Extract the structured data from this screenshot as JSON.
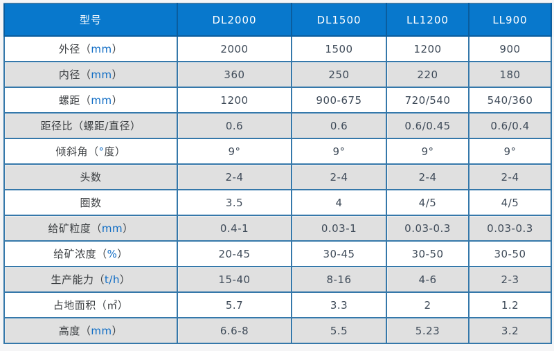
{
  "colors": {
    "header_bg": "#0878cc",
    "header_cell_border": "#0a5d9e",
    "grid_border": "#3578aa",
    "alt_row_bg": "#e0e0e0",
    "value_text": "#3e4a58",
    "label_text": "#3c3f42",
    "unit_text": "#0d6bc4",
    "page_bg": "#f5f5f6"
  },
  "table": {
    "header": {
      "model_label": "型号",
      "columns": [
        "DL2000",
        "DL1500",
        "LL1200",
        "LL900"
      ]
    },
    "rows": [
      {
        "label": {
          "pre": "外径（",
          "unit": "mm",
          "post": "）"
        },
        "values": [
          "2000",
          "1500",
          "1200",
          "900"
        ]
      },
      {
        "label": {
          "pre": "内径（",
          "unit": "mm",
          "post": "）"
        },
        "values": [
          "360",
          "250",
          "220",
          "180"
        ]
      },
      {
        "label": {
          "pre": "螺距（",
          "unit": "mm",
          "post": "）"
        },
        "values": [
          "1200",
          "900-675",
          "720/540",
          "540/360"
        ]
      },
      {
        "label": {
          "pre": "距径比（螺距/直径）",
          "unit": "",
          "post": ""
        },
        "values": [
          "0.6",
          "0.6",
          "0.6/0.45",
          "0.6/0.4"
        ]
      },
      {
        "label": {
          "pre": "倾斜角（",
          "unit": "°",
          "post": "度）"
        },
        "values": [
          "9°",
          "9°",
          "9°",
          "9°"
        ]
      },
      {
        "label": {
          "pre": "头数",
          "unit": "",
          "post": ""
        },
        "values": [
          "2-4",
          "2-4",
          "2-4",
          "2-4"
        ]
      },
      {
        "label": {
          "pre": "圈数",
          "unit": "",
          "post": ""
        },
        "values": [
          "3.5",
          "4",
          "4/5",
          "4/5"
        ]
      },
      {
        "label": {
          "pre": "给矿粒度（",
          "unit": "mm",
          "post": "）"
        },
        "values": [
          "0.4-1",
          "0.03-1",
          "0.03-0.3",
          "0.03-0.3"
        ]
      },
      {
        "label": {
          "pre": "给矿浓度（",
          "unit": "%",
          "post": "）"
        },
        "values": [
          "20-45",
          "30-45",
          "30-50",
          "30-50"
        ]
      },
      {
        "label": {
          "pre": "生产能力（",
          "unit": "t/h",
          "post": "）"
        },
        "values": [
          "15-40",
          "8-16",
          "4-6",
          "2-3"
        ]
      },
      {
        "label": {
          "pre": "占地面积（㎡）",
          "unit": "",
          "post": ""
        },
        "values": [
          "5.7",
          "3.3",
          "2",
          "1.2"
        ]
      },
      {
        "label": {
          "pre": "高度（",
          "unit": "mm",
          "post": "）"
        },
        "values": [
          "6.6-8",
          "5.5",
          "5.23",
          "3.2"
        ]
      }
    ]
  },
  "chart_data": {
    "type": "table",
    "title": "型号规格参数表",
    "columns": [
      "型号",
      "DL2000",
      "DL1500",
      "LL1200",
      "LL900"
    ],
    "rows": [
      [
        "外径（mm）",
        "2000",
        "1500",
        "1200",
        "900"
      ],
      [
        "内径（mm）",
        "360",
        "250",
        "220",
        "180"
      ],
      [
        "螺距（mm）",
        "1200",
        "900-675",
        "720/540",
        "540/360"
      ],
      [
        "距径比（螺距/直径）",
        "0.6",
        "0.6",
        "0.6/0.45",
        "0.6/0.4"
      ],
      [
        "倾斜角（°度）",
        "9°",
        "9°",
        "9°",
        "9°"
      ],
      [
        "头数",
        "2-4",
        "2-4",
        "2-4",
        "2-4"
      ],
      [
        "圈数",
        "3.5",
        "4",
        "4/5",
        "4/5"
      ],
      [
        "给矿粒度（mm）",
        "0.4-1",
        "0.03-1",
        "0.03-0.3",
        "0.03-0.3"
      ],
      [
        "给矿浓度（%）",
        "20-45",
        "30-45",
        "30-50",
        "30-50"
      ],
      [
        "生产能力（t/h）",
        "15-40",
        "8-16",
        "4-6",
        "2-3"
      ],
      [
        "占地面积（㎡）",
        "5.7",
        "3.3",
        "2",
        "1.2"
      ],
      [
        "高度（mm）",
        "6.6-8",
        "5.5",
        "5.23",
        "3.2"
      ]
    ]
  }
}
